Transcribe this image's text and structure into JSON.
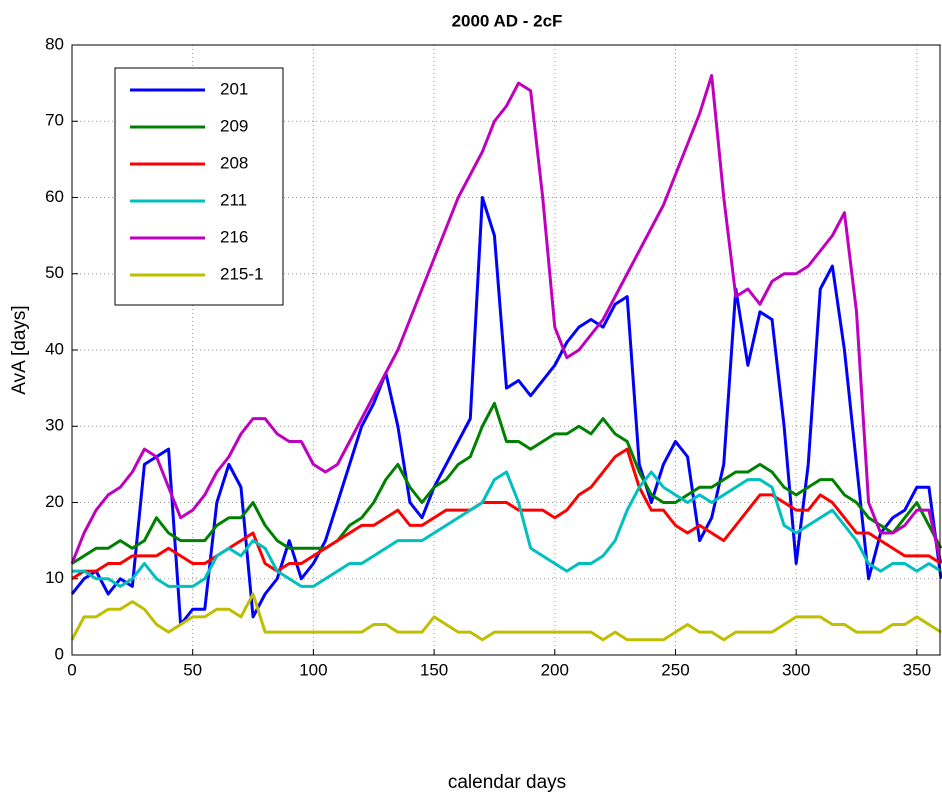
{
  "chart_data": {
    "type": "line",
    "title": "2000 AD - 2cF",
    "x_label": "calendar days",
    "y_label": "AvA [days]",
    "xlim": [
      0,
      360
    ],
    "ylim": [
      0,
      80
    ],
    "xticks": [
      0,
      50,
      100,
      150,
      200,
      250,
      300,
      350
    ],
    "yticks": [
      0,
      10,
      20,
      30,
      40,
      50,
      60,
      70,
      80
    ],
    "grid": true,
    "legend": "upper-left",
    "x": [
      0,
      5,
      10,
      15,
      20,
      25,
      30,
      35,
      40,
      45,
      50,
      55,
      60,
      65,
      70,
      75,
      80,
      85,
      90,
      95,
      100,
      105,
      110,
      115,
      120,
      125,
      130,
      135,
      140,
      145,
      150,
      155,
      160,
      165,
      170,
      175,
      180,
      185,
      190,
      195,
      200,
      205,
      210,
      215,
      220,
      225,
      230,
      235,
      240,
      245,
      250,
      255,
      260,
      265,
      270,
      275,
      280,
      285,
      290,
      295,
      300,
      305,
      310,
      315,
      320,
      325,
      330,
      335,
      340,
      345,
      350,
      355,
      360
    ],
    "series": [
      {
        "name": "201",
        "color": "#0000ff",
        "values": [
          8,
          10,
          11,
          8,
          10,
          9,
          25,
          26,
          27,
          4,
          6,
          6,
          20,
          25,
          22,
          5,
          8,
          10,
          15,
          10,
          12,
          15,
          20,
          25,
          30,
          33,
          37,
          30,
          20,
          18,
          22,
          25,
          28,
          31,
          60,
          55,
          35,
          36,
          34,
          36,
          38,
          41,
          43,
          44,
          43,
          46,
          47,
          25,
          20,
          25,
          28,
          26,
          15,
          18,
          25,
          48,
          38,
          45,
          44,
          30,
          12,
          25,
          48,
          51,
          40,
          25,
          10,
          16,
          18,
          19,
          22,
          22,
          10
        ]
      },
      {
        "name": "209",
        "color": "#008000",
        "values": [
          12,
          13,
          14,
          14,
          15,
          14,
          15,
          18,
          16,
          15,
          15,
          15,
          17,
          18,
          18,
          20,
          17,
          15,
          14,
          14,
          14,
          14,
          15,
          17,
          18,
          20,
          23,
          25,
          22,
          20,
          22,
          23,
          25,
          26,
          30,
          33,
          28,
          28,
          27,
          28,
          29,
          29,
          30,
          29,
          31,
          29,
          28,
          24,
          21,
          20,
          20,
          21,
          22,
          22,
          23,
          24,
          24,
          25,
          24,
          22,
          21,
          22,
          23,
          23,
          21,
          20,
          18,
          17,
          16,
          18,
          20,
          17,
          14
        ]
      },
      {
        "name": "208",
        "color": "#ff0000",
        "values": [
          10,
          11,
          11,
          12,
          12,
          13,
          13,
          13,
          14,
          13,
          12,
          12,
          13,
          14,
          15,
          16,
          12,
          11,
          12,
          12,
          13,
          14,
          15,
          16,
          17,
          17,
          18,
          19,
          17,
          17,
          18,
          19,
          19,
          19,
          20,
          20,
          20,
          19,
          19,
          19,
          18,
          19,
          21,
          22,
          24,
          26,
          27,
          22,
          19,
          19,
          17,
          16,
          17,
          16,
          15,
          17,
          19,
          21,
          21,
          20,
          19,
          19,
          21,
          20,
          18,
          16,
          16,
          15,
          14,
          13,
          13,
          13,
          12
        ]
      },
      {
        "name": "211",
        "color": "#00bfbf",
        "values": [
          11,
          11,
          10,
          10,
          9,
          10,
          12,
          10,
          9,
          9,
          9,
          10,
          13,
          14,
          13,
          15,
          14,
          11,
          10,
          9,
          9,
          10,
          11,
          12,
          12,
          13,
          14,
          15,
          15,
          15,
          16,
          17,
          18,
          19,
          20,
          23,
          24,
          20,
          14,
          13,
          12,
          11,
          12,
          12,
          13,
          15,
          19,
          22,
          24,
          22,
          21,
          20,
          21,
          20,
          21,
          22,
          23,
          23,
          22,
          17,
          16,
          17,
          18,
          19,
          17,
          15,
          12,
          11,
          12,
          12,
          11,
          12,
          11
        ]
      },
      {
        "name": "216",
        "color": "#bf00bf",
        "values": [
          12,
          16,
          19,
          21,
          22,
          24,
          27,
          26,
          22,
          18,
          19,
          21,
          24,
          26,
          29,
          31,
          31,
          29,
          28,
          28,
          25,
          24,
          25,
          28,
          31,
          34,
          37,
          40,
          44,
          48,
          52,
          56,
          60,
          63,
          66,
          70,
          72,
          75,
          74,
          60,
          43,
          39,
          40,
          42,
          44,
          47,
          50,
          53,
          56,
          59,
          63,
          67,
          71,
          76,
          60,
          47,
          48,
          46,
          49,
          50,
          50,
          51,
          53,
          55,
          58,
          45,
          20,
          16,
          16,
          17,
          19,
          19,
          12
        ]
      },
      {
        "name": "215-1",
        "color": "#bfbf00",
        "values": [
          2,
          5,
          5,
          6,
          6,
          7,
          6,
          4,
          3,
          4,
          5,
          5,
          6,
          6,
          5,
          8,
          3,
          3,
          3,
          3,
          3,
          3,
          3,
          3,
          3,
          4,
          4,
          3,
          3,
          3,
          5,
          4,
          3,
          3,
          2,
          3,
          3,
          3,
          3,
          3,
          3,
          3,
          3,
          3,
          2,
          3,
          2,
          2,
          2,
          2,
          3,
          4,
          3,
          3,
          2,
          3,
          3,
          3,
          3,
          4,
          5,
          5,
          5,
          4,
          4,
          3,
          3,
          3,
          4,
          4,
          5,
          4,
          3
        ]
      }
    ]
  }
}
